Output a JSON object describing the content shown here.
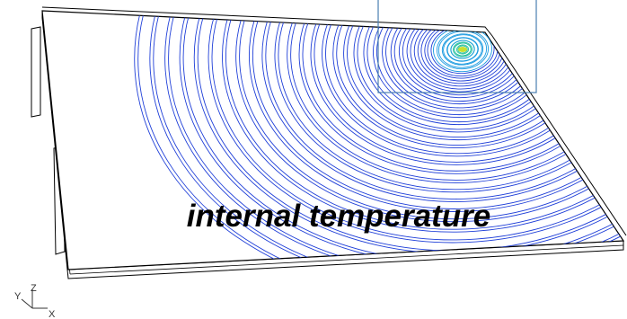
{
  "caption": "internal temperature",
  "axes": {
    "y": "Y",
    "z": "Z",
    "x": "X"
  }
}
